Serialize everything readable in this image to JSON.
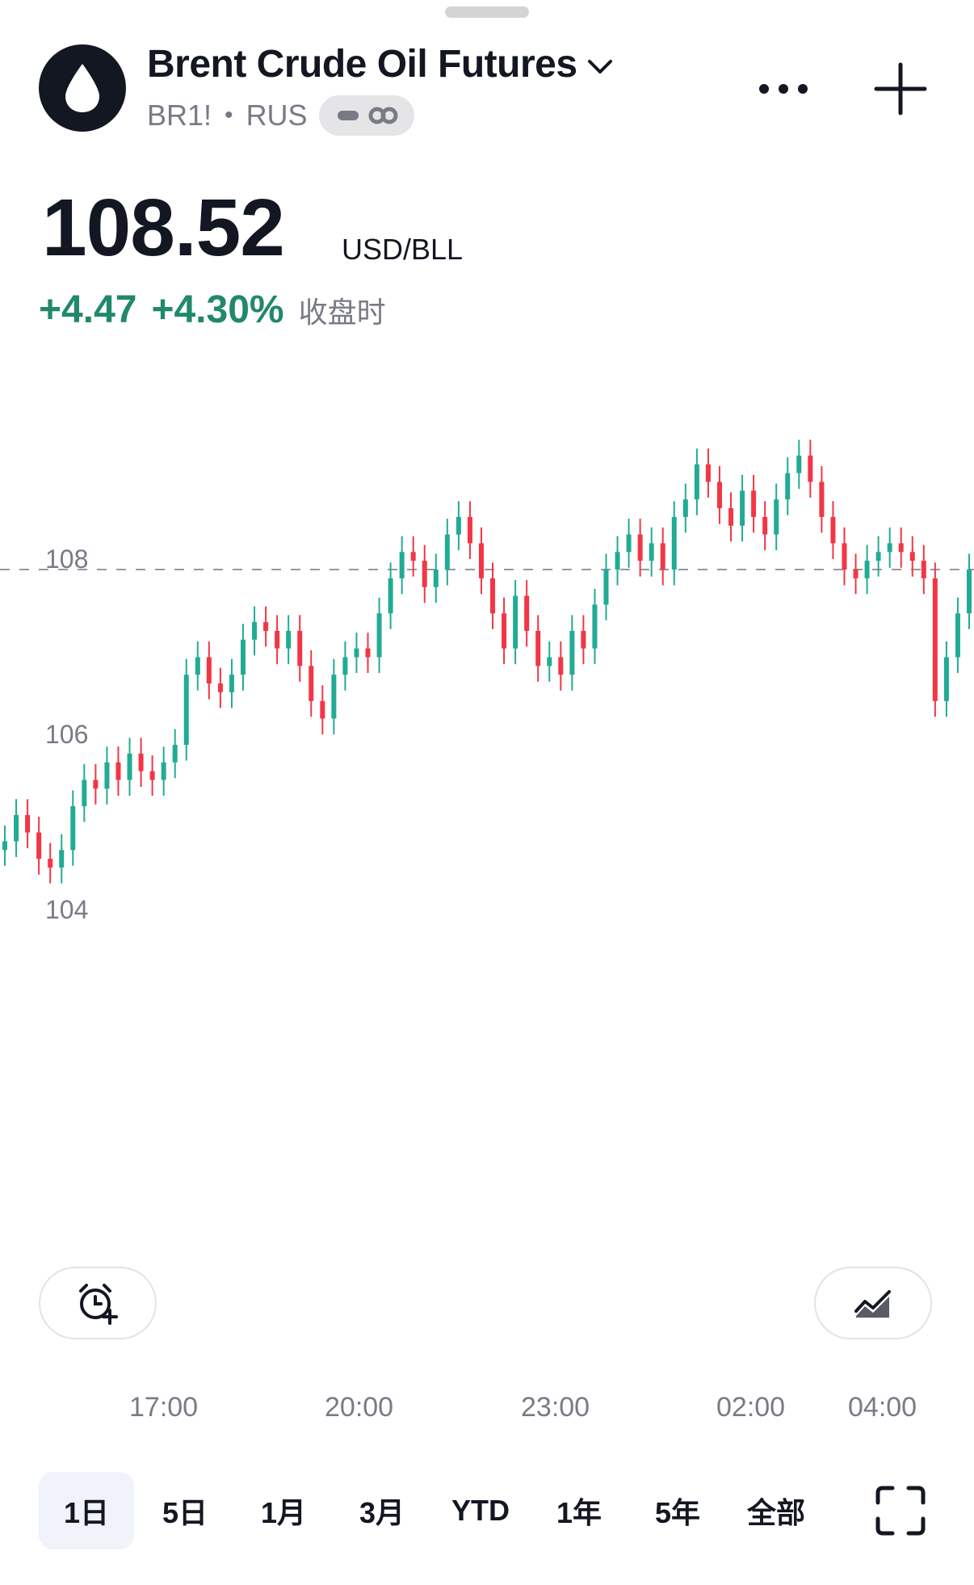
{
  "header": {
    "title": "Brent Crude Oil Futures",
    "symbol": "BR1!",
    "exchange": "RUS",
    "logo_icon": "oil-drop-icon",
    "more_icon": "more-horizontal-icon",
    "add_icon": "plus-icon"
  },
  "quote": {
    "price": "108.52",
    "currency": "USD/BLL",
    "change": "+4.47",
    "change_pct": "+4.30%",
    "session_label": "收盘时",
    "change_color": "#22886c"
  },
  "chart_data": {
    "type": "candlestick",
    "y_ticks": [
      "108",
      "106",
      "104"
    ],
    "x_ticks": [
      "17:00",
      "20:00",
      "23:00",
      "02:00",
      "04:00"
    ],
    "reference_line": 108.0,
    "up_color": "#22ab94",
    "down_color": "#f23645",
    "close_series": [
      104.9,
      105.2,
      105.0,
      104.7,
      104.6,
      104.8,
      105.3,
      105.6,
      105.5,
      105.8,
      105.6,
      105.9,
      105.7,
      105.6,
      105.8,
      106.0,
      106.8,
      107.0,
      106.7,
      106.6,
      106.8,
      107.2,
      107.4,
      107.3,
      107.1,
      107.3,
      106.9,
      106.5,
      106.3,
      106.8,
      107.0,
      107.1,
      107.0,
      107.5,
      107.9,
      108.2,
      108.1,
      107.8,
      108.0,
      108.4,
      108.6,
      108.3,
      107.9,
      107.5,
      107.1,
      107.7,
      107.3,
      106.9,
      107.0,
      106.8,
      107.3,
      107.1,
      107.6,
      108.0,
      108.2,
      108.4,
      108.1,
      108.3,
      108.0,
      108.6,
      108.8,
      109.2,
      109.0,
      108.7,
      108.5,
      108.9,
      108.6,
      108.4,
      108.8,
      109.1,
      109.3,
      109.0,
      108.6,
      108.3,
      108.0,
      107.9,
      108.1,
      108.2,
      108.3,
      108.2,
      108.1,
      107.9,
      106.5,
      107.0,
      107.5,
      108.0
    ]
  },
  "toolbar": {
    "alert_icon": "add-alarm-icon",
    "chart_style_icon": "chart-style-icon"
  },
  "ranges": [
    "1日",
    "5日",
    "1月",
    "3月",
    "YTD",
    "1年",
    "5年",
    "全部"
  ],
  "active_range": "1日",
  "fullscreen_icon": "fullscreen-icon"
}
